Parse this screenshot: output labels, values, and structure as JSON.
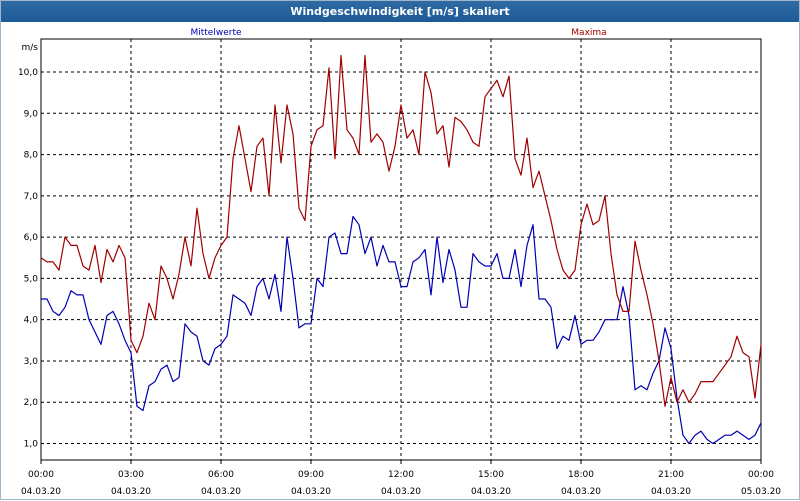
{
  "window": {
    "title": "Windgeschwindigkeit [m/s] skaliert"
  },
  "colors": {
    "mittel": "#0000b4",
    "maxima": "#a00000",
    "grid": "#000000",
    "titlebar": "#1d5a96"
  },
  "chart_data": {
    "type": "line",
    "title": "Windgeschwindigkeit [m/s] skaliert",
    "ylabel": "m/s",
    "xlabel": "",
    "ylim": [
      0.6,
      10.8
    ],
    "xlim": [
      0,
      24
    ],
    "grid": true,
    "legend": "top",
    "y_ticks": [
      "1,0",
      "2,0",
      "3,0",
      "4,0",
      "5,0",
      "6,0",
      "7,0",
      "8,0",
      "9,0",
      "10,0"
    ],
    "x_ticks": [
      {
        "time": "00:00",
        "date": "04.03.20"
      },
      {
        "time": "03:00",
        "date": "04.03.20"
      },
      {
        "time": "06:00",
        "date": "04.03.20"
      },
      {
        "time": "09:00",
        "date": "04.03.20"
      },
      {
        "time": "12:00",
        "date": "04.03.20"
      },
      {
        "time": "15:00",
        "date": "04.03.20"
      },
      {
        "time": "18:00",
        "date": "04.03.20"
      },
      {
        "time": "21:00",
        "date": "04.03.20"
      },
      {
        "time": "00:00",
        "date": "05.03.20"
      }
    ],
    "series": [
      {
        "name": "Mittelwerte",
        "x": [
          0,
          0.2,
          0.4,
          0.6,
          0.8,
          1.0,
          1.2,
          1.4,
          1.6,
          1.8,
          2.0,
          2.2,
          2.4,
          2.6,
          2.8,
          3.0,
          3.2,
          3.4,
          3.6,
          3.8,
          4.0,
          4.2,
          4.4,
          4.6,
          4.8,
          5.0,
          5.2,
          5.4,
          5.6,
          5.8,
          6.0,
          6.2,
          6.4,
          6.6,
          6.8,
          7.0,
          7.2,
          7.4,
          7.6,
          7.8,
          8.0,
          8.2,
          8.4,
          8.6,
          8.8,
          9.0,
          9.2,
          9.4,
          9.6,
          9.8,
          10.0,
          10.2,
          10.4,
          10.6,
          10.8,
          11.0,
          11.2,
          11.4,
          11.6,
          11.8,
          12.0,
          12.2,
          12.4,
          12.6,
          12.8,
          13.0,
          13.2,
          13.4,
          13.6,
          13.8,
          14.0,
          14.2,
          14.4,
          14.6,
          14.8,
          15.0,
          15.2,
          15.4,
          15.6,
          15.8,
          16.0,
          16.2,
          16.4,
          16.6,
          16.8,
          17.0,
          17.2,
          17.4,
          17.6,
          17.8,
          18.0,
          18.2,
          18.4,
          18.6,
          18.8,
          19.0,
          19.2,
          19.4,
          19.6,
          19.8,
          20.0,
          20.2,
          20.4,
          20.6,
          20.8,
          21.0,
          21.2,
          21.4,
          21.6,
          21.8,
          22.0,
          22.2,
          22.4,
          22.6,
          22.8,
          23.0,
          23.2,
          23.4,
          23.6,
          23.8,
          24.0
        ],
        "y": [
          4.5,
          4.5,
          4.2,
          4.1,
          4.3,
          4.7,
          4.6,
          4.6,
          4.0,
          3.7,
          3.4,
          4.1,
          4.2,
          3.9,
          3.5,
          3.2,
          1.9,
          1.8,
          2.4,
          2.5,
          2.8,
          2.9,
          2.5,
          2.6,
          3.9,
          3.7,
          3.6,
          3.0,
          2.9,
          3.3,
          3.4,
          3.6,
          4.6,
          4.5,
          4.4,
          4.1,
          4.8,
          5.0,
          4.5,
          5.1,
          4.2,
          6.0,
          5.0,
          3.8,
          3.9,
          3.9,
          5.0,
          4.8,
          6.0,
          6.1,
          5.6,
          5.6,
          6.5,
          6.3,
          5.6,
          6.0,
          5.3,
          5.8,
          5.4,
          5.4,
          4.8,
          4.8,
          5.4,
          5.5,
          5.7,
          4.6,
          6.0,
          4.9,
          5.7,
          5.2,
          4.3,
          4.3,
          5.6,
          5.4,
          5.3,
          5.3,
          5.6,
          5.0,
          5.0,
          5.7,
          4.8,
          5.8,
          6.3,
          4.5,
          4.5,
          4.3,
          3.3,
          3.6,
          3.5,
          4.1,
          3.4,
          3.5,
          3.5,
          3.7,
          4.0,
          4.0,
          4.0,
          4.8,
          4.1,
          2.3,
          2.4,
          2.3,
          2.7,
          3.0,
          3.8,
          3.3,
          2.1,
          1.2,
          1.0,
          1.2,
          1.3,
          1.1,
          1.0,
          1.1,
          1.2,
          1.2,
          1.3,
          1.2,
          1.1,
          1.2,
          1.5
        ]
      },
      {
        "name": "Maxima",
        "x": [
          0,
          0.2,
          0.4,
          0.6,
          0.8,
          1.0,
          1.2,
          1.4,
          1.6,
          1.8,
          2.0,
          2.2,
          2.4,
          2.6,
          2.8,
          3.0,
          3.2,
          3.4,
          3.6,
          3.8,
          4.0,
          4.2,
          4.4,
          4.6,
          4.8,
          5.0,
          5.2,
          5.4,
          5.6,
          5.8,
          6.0,
          6.2,
          6.4,
          6.6,
          6.8,
          7.0,
          7.2,
          7.4,
          7.6,
          7.8,
          8.0,
          8.2,
          8.4,
          8.6,
          8.8,
          9.0,
          9.2,
          9.4,
          9.6,
          9.8,
          10.0,
          10.2,
          10.4,
          10.6,
          10.8,
          11.0,
          11.2,
          11.4,
          11.6,
          11.8,
          12.0,
          12.2,
          12.4,
          12.6,
          12.8,
          13.0,
          13.2,
          13.4,
          13.6,
          13.8,
          14.0,
          14.2,
          14.4,
          14.6,
          14.8,
          15.0,
          15.2,
          15.4,
          15.6,
          15.8,
          16.0,
          16.2,
          16.4,
          16.6,
          16.8,
          17.0,
          17.2,
          17.4,
          17.6,
          17.8,
          18.0,
          18.2,
          18.4,
          18.6,
          18.8,
          19.0,
          19.2,
          19.4,
          19.6,
          19.8,
          20.0,
          20.2,
          20.4,
          20.6,
          20.8,
          21.0,
          21.2,
          21.4,
          21.6,
          21.8,
          22.0,
          22.2,
          22.4,
          22.6,
          22.8,
          23.0,
          23.2,
          23.4,
          23.6,
          23.8,
          24.0
        ],
        "y": [
          5.5,
          5.4,
          5.4,
          5.2,
          6.0,
          5.8,
          5.8,
          5.3,
          5.2,
          5.8,
          4.9,
          5.7,
          5.4,
          5.8,
          5.5,
          3.5,
          3.2,
          3.6,
          4.4,
          4.0,
          5.3,
          5.0,
          4.5,
          5.1,
          6.0,
          5.3,
          6.7,
          5.6,
          5.0,
          5.5,
          5.8,
          6.0,
          7.9,
          8.7,
          7.9,
          7.1,
          8.2,
          8.4,
          7.0,
          9.2,
          7.8,
          9.2,
          8.5,
          6.7,
          6.4,
          8.2,
          8.6,
          8.7,
          10.1,
          7.9,
          10.4,
          8.6,
          8.4,
          8.0,
          10.4,
          8.3,
          8.5,
          8.3,
          7.6,
          8.2,
          9.2,
          8.4,
          8.6,
          8.0,
          10.0,
          9.5,
          8.5,
          8.7,
          7.7,
          8.9,
          8.8,
          8.6,
          8.3,
          8.2,
          9.4,
          9.6,
          9.8,
          9.4,
          9.9,
          7.9,
          7.5,
          8.4,
          7.2,
          7.6,
          7.0,
          6.4,
          5.7,
          5.2,
          5.0,
          5.2,
          6.3,
          6.8,
          6.3,
          6.4,
          7.0,
          5.6,
          4.6,
          4.2,
          4.2,
          5.9,
          5.2,
          4.6,
          3.9,
          3.0,
          1.9,
          2.6,
          2.0,
          2.3,
          2.0,
          2.2,
          2.5,
          2.5,
          2.5,
          2.7,
          2.9,
          3.1,
          3.6,
          3.2,
          3.1,
          2.1,
          3.4
        ]
      }
    ]
  }
}
